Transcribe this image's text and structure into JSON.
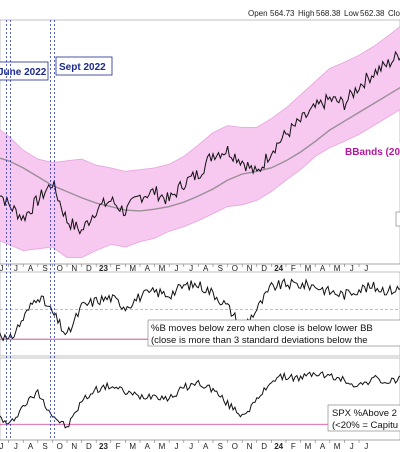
{
  "chart_data": [
    {
      "type": "line",
      "panel": "price",
      "ohlc": {
        "open_label": "Open",
        "open": "564.73",
        "high_label": "High",
        "high": "568.38",
        "low_label": "Low",
        "low": "562.38",
        "close_label": "Clo"
      },
      "x_ticks": [
        "J",
        "J",
        "A",
        "S",
        "O",
        "N",
        "D",
        "23",
        "F",
        "M",
        "A",
        "M",
        "J",
        "J",
        "A",
        "S",
        "O",
        "N",
        "D",
        "24",
        "F",
        "M",
        "A",
        "M",
        "J",
        "J"
      ],
      "x": [
        "2022-05",
        "2022-06",
        "2022-07",
        "2022-08",
        "2022-09",
        "2022-10",
        "2022-11",
        "2022-12",
        "2023-01",
        "2023-02",
        "2023-03",
        "2023-04",
        "2023-05",
        "2023-06",
        "2023-07",
        "2023-08",
        "2023-09",
        "2023-10",
        "2023-11",
        "2023-12",
        "2024-01",
        "2024-02",
        "2024-03",
        "2024-04",
        "2024-05",
        "2024-06",
        "2024-07",
        "2024-08",
        "2024-09"
      ],
      "series": [
        {
          "values": [
            412,
            390,
            375,
            395,
            415,
            372,
            360,
            385,
            395,
            382,
            400,
            405,
            395,
            415,
            425,
            448,
            452,
            440,
            425,
            452,
            470,
            485,
            500,
            510,
            505,
            525,
            540,
            550,
            565
          ]
        },
        {
          "values": [
            445,
            440,
            432,
            422,
            412,
            405,
            398,
            392,
            388,
            384,
            383,
            385,
            388,
            393,
            400,
            408,
            418,
            425,
            428,
            432,
            440,
            450,
            462,
            475,
            485,
            495,
            505,
            515,
            525
          ]
        }
      ],
      "bbands_upper": [
        480,
        468,
        452,
        442,
        438,
        440,
        442,
        435,
        432,
        428,
        430,
        432,
        436,
        445,
        458,
        472,
        480,
        478,
        478,
        488,
        500,
        515,
        530,
        545,
        552,
        560,
        570,
        582,
        595
      ],
      "bbands_lower": [
        352,
        345,
        338,
        340,
        342,
        330,
        330,
        338,
        345,
        342,
        348,
        352,
        360,
        365,
        372,
        380,
        388,
        390,
        395,
        405,
        418,
        430,
        445,
        455,
        462,
        470,
        480,
        490,
        500
      ],
      "annotations": [
        "June 2022",
        "Sept 2022",
        "BBands (20"
      ],
      "vertical_markers": [
        "2022-06",
        "2022-09"
      ]
    },
    {
      "type": "line",
      "panel": "percent_b",
      "x": [
        "2022-05",
        "2022-06",
        "2022-07",
        "2022-08",
        "2022-09",
        "2022-10",
        "2022-11",
        "2022-12",
        "2023-01",
        "2023-02",
        "2023-03",
        "2023-04",
        "2023-05",
        "2023-06",
        "2023-07",
        "2023-08",
        "2023-09",
        "2023-10",
        "2023-11",
        "2023-12",
        "2024-01",
        "2024-02",
        "2024-03",
        "2024-04",
        "2024-05",
        "2024-06",
        "2024-07",
        "2024-08",
        "2024-09"
      ],
      "series": [
        {
          "values": [
            0.25,
            -0.05,
            0.35,
            0.75,
            0.45,
            0.05,
            0.55,
            0.65,
            0.7,
            0.55,
            0.72,
            0.8,
            0.75,
            0.9,
            0.92,
            0.78,
            0.55,
            0.2,
            0.5,
            0.88,
            0.93,
            0.92,
            0.9,
            0.8,
            0.75,
            0.85,
            0.88,
            0.82,
            0.86
          ]
        }
      ],
      "reference_lines": [
        0,
        0.5
      ],
      "annotation_lines": [
        "%B moves below zero when close is below lower BB",
        "(close is more than 3 standard deviations below the"
      ]
    },
    {
      "type": "line",
      "panel": "pct_above_200",
      "x": [
        "2022-05",
        "2022-06",
        "2022-07",
        "2022-08",
        "2022-09",
        "2022-10",
        "2022-11",
        "2022-12",
        "2023-01",
        "2023-02",
        "2023-03",
        "2023-04",
        "2023-05",
        "2023-06",
        "2023-07",
        "2023-08",
        "2023-09",
        "2023-10",
        "2023-11",
        "2023-12",
        "2024-01",
        "2024-02",
        "2024-03",
        "2024-04",
        "2024-05",
        "2024-06",
        "2024-07",
        "2024-08",
        "2024-09"
      ],
      "series": [
        {
          "values": [
            35,
            18,
            40,
            55,
            30,
            16,
            45,
            58,
            62,
            55,
            50,
            52,
            48,
            60,
            65,
            58,
            42,
            30,
            45,
            68,
            72,
            70,
            76,
            72,
            68,
            62,
            70,
            65,
            72
          ]
        }
      ],
      "reference_lines": [
        20
      ],
      "annotation_lines": [
        "SPX %Above 2",
        "(<20% = Capitu"
      ],
      "x_ticks": [
        "J",
        "J",
        "A",
        "S",
        "O",
        "N",
        "D",
        "23",
        "F",
        "M",
        "A",
        "M",
        "J",
        "J",
        "A",
        "S",
        "O",
        "N",
        "D",
        "24",
        "F",
        "M",
        "A",
        "M",
        "J",
        "J"
      ]
    }
  ]
}
